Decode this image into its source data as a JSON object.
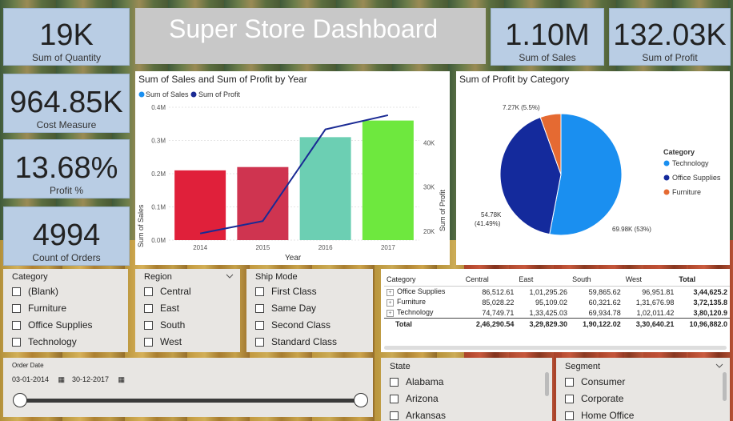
{
  "dashboard": {
    "title": "Super Store Dashboard"
  },
  "kpis": {
    "quantity": {
      "value": "19K",
      "label": "Sum of Quantity"
    },
    "sales": {
      "value": "1.10M",
      "label": "Sum of Sales"
    },
    "profit": {
      "value": "132.03K",
      "label": "Sum of Profit"
    },
    "cost": {
      "value": "964.85K",
      "label": "Cost Measure"
    },
    "profit_pct": {
      "value": "13.68%",
      "label": "Profit %"
    },
    "orders": {
      "value": "4994",
      "label": "Count of Orders"
    }
  },
  "combo_chart": {
    "title": "Sum of Sales and Sum of Profit by Year",
    "legend": [
      "Sum of Sales",
      "Sum of Profit"
    ],
    "xlabel": "Year",
    "ylabel_left": "Sum of Sales",
    "ylabel_right": "Sum of Profit",
    "left_ticks": [
      "0.0M",
      "0.1M",
      "0.2M",
      "0.3M",
      "0.4M"
    ],
    "right_ticks": [
      "20K",
      "30K",
      "40K"
    ]
  },
  "pie_chart": {
    "title": "Sum of Profit by Category",
    "legend_title": "Category",
    "labels": {
      "technology": "69.98K (53%)",
      "office_line1": "54.78K",
      "office_line2": "(41.49%)",
      "furniture": "7.27K (5.5%)"
    }
  },
  "chart_data": [
    {
      "type": "bar",
      "title": "Sum of Sales and Sum of Profit by Year",
      "categories": [
        "2014",
        "2015",
        "2016",
        "2017"
      ],
      "series": [
        {
          "name": "Sum of Sales",
          "values": [
            0.21,
            0.22,
            0.31,
            0.36
          ],
          "unit": "M",
          "colors": [
            "#e0203a",
            "#cf3450",
            "#6ccfb3",
            "#6ee83e"
          ]
        },
        {
          "name": "Sum of Profit",
          "type": "line",
          "values": [
            19.5,
            22.3,
            43.0,
            46.2
          ],
          "unit": "K",
          "color": "#1a2a94"
        }
      ],
      "xlabel": "Year",
      "ylabel": "Sum of Sales",
      "ylim": [
        0,
        0.4
      ],
      "y2label": "Sum of Profit",
      "y2lim": [
        18,
        48
      ]
    },
    {
      "type": "pie",
      "title": "Sum of Profit by Category",
      "categories": [
        "Technology",
        "Office Supplies",
        "Furniture"
      ],
      "values": [
        69.98,
        54.78,
        7.27
      ],
      "colors": [
        "#1a8ff0",
        "#142a9c",
        "#e56a32"
      ]
    },
    {
      "type": "table",
      "columns": [
        "Category",
        "Central",
        "East",
        "South",
        "West",
        "Total"
      ],
      "rows": [
        [
          "Office Supplies",
          "86,512.61",
          "1,01,295.26",
          "59,865.62",
          "96,951.81",
          "3,44,625.2"
        ],
        [
          "Furniture",
          "85,028.22",
          "95,109.02",
          "60,321.62",
          "1,31,676.98",
          "3,72,135.8"
        ],
        [
          "Technology",
          "74,749.71",
          "1,33,425.03",
          "69,934.78",
          "1,02,011.42",
          "3,80,120.9"
        ]
      ],
      "total": [
        "Total",
        "2,46,290.54",
        "3,29,829.30",
        "1,90,122.02",
        "3,30,640.21",
        "10,96,882.0"
      ]
    }
  ],
  "slicers": {
    "category": {
      "header": "Category",
      "options": [
        "(Blank)",
        "Furniture",
        "Office Supplies",
        "Technology"
      ]
    },
    "region": {
      "header": "Region",
      "options": [
        "Central",
        "East",
        "South",
        "West"
      ]
    },
    "ship_mode": {
      "header": "Ship Mode",
      "options": [
        "First Class",
        "Same Day",
        "Second Class",
        "Standard Class"
      ]
    },
    "order_date": {
      "header": "Order Date",
      "start": "03-01-2014",
      "end": "30-12-2017"
    },
    "state": {
      "header": "State",
      "options": [
        "Alabama",
        "Arizona",
        "Arkansas"
      ]
    },
    "segment": {
      "header": "Segment",
      "options": [
        "Consumer",
        "Corporate",
        "Home Office"
      ]
    }
  },
  "colors": {
    "kpi_bg": "#b9cde4",
    "title_bg": "#c8c8c8",
    "slicer_bg": "#e8e6e3"
  }
}
